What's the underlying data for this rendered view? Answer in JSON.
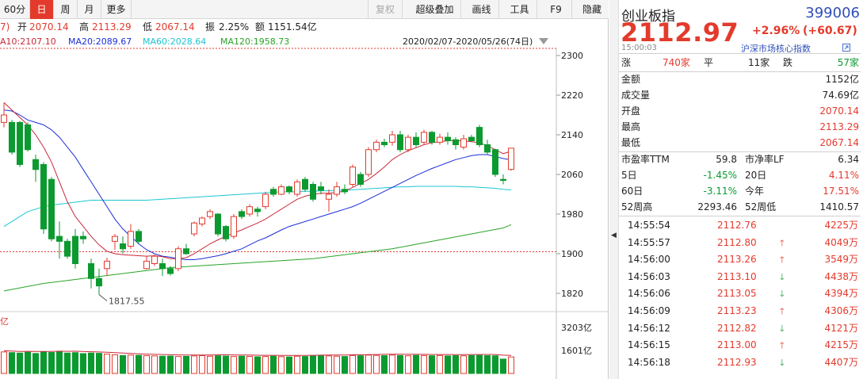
{
  "toolbar": {
    "tabs": [
      "60分",
      "日",
      "周",
      "月",
      "更多"
    ],
    "active_tab": "日",
    "right_buttons": [
      "复权",
      "超级叠加",
      "画线",
      "工具",
      "F9",
      "隐藏"
    ],
    "disabled_buttons": [
      "复权"
    ]
  },
  "info": {
    "prefix": "7)",
    "open_label": "开",
    "open": "2070.14",
    "high_label": "高",
    "high": "2113.29",
    "low_label": "低",
    "low": "2067.14",
    "amp_label": "振",
    "amp": "2.25%",
    "amount_label": "额",
    "amount": "1151.54亿"
  },
  "ma": {
    "ma10": "A10:2107.10",
    "ma20": "MA20:2089.67",
    "ma60": "MA60:2028.64",
    "ma120": "MA120:1958.73",
    "range": "2020/02/07-2020/05/26(74日)"
  },
  "colors": {
    "up": "#e33a2c",
    "down": "#0b9a2f",
    "ma10": "#c8283a",
    "ma20": "#1c2ed8",
    "ma60": "#1cc6d4",
    "ma120": "#28a428",
    "accent": "#e33a2c",
    "code_blue": "#2f4fb8"
  },
  "chart_data": {
    "type": "candlestick",
    "y_axis_labels": [
      "2300",
      "2220",
      "2140",
      "2060",
      "1980",
      "1900",
      "1820"
    ],
    "ylim": [
      1780,
      2310
    ],
    "low_annotation": "1817.55",
    "candles": [
      {
        "o": 2165,
        "c": 2180,
        "h": 2205,
        "l": 2155
      },
      {
        "o": 2165,
        "c": 2105,
        "h": 2170,
        "l": 2100
      },
      {
        "o": 2165,
        "c": 2080,
        "h": 2168,
        "l": 2075
      },
      {
        "o": 2160,
        "c": 2110,
        "h": 2165,
        "l": 2106
      },
      {
        "o": 2090,
        "c": 2070,
        "h": 2100,
        "l": 2045
      },
      {
        "o": 2080,
        "c": 1950,
        "h": 2085,
        "l": 1940
      },
      {
        "o": 2050,
        "c": 1930,
        "h": 2055,
        "l": 1925
      },
      {
        "o": 1935,
        "c": 1925,
        "h": 1965,
        "l": 1890
      },
      {
        "o": 1925,
        "c": 1895,
        "h": 1930,
        "l": 1890
      },
      {
        "o": 1935,
        "c": 1880,
        "h": 1950,
        "l": 1870
      },
      {
        "o": 1935,
        "c": 1930,
        "h": 1945,
        "l": 1920
      },
      {
        "o": 1880,
        "c": 1850,
        "h": 1890,
        "l": 1830
      },
      {
        "o": 1850,
        "c": 1835,
        "h": 1870,
        "l": 1817.55
      },
      {
        "o": 1870,
        "c": 1885,
        "h": 1892,
        "l": 1855
      },
      {
        "o": 1925,
        "c": 1935,
        "h": 1940,
        "l": 1908
      },
      {
        "o": 1920,
        "c": 1910,
        "h": 1935,
        "l": 1900
      },
      {
        "o": 1915,
        "c": 1945,
        "h": 1960,
        "l": 1910
      },
      {
        "o": 1945,
        "c": 1925,
        "h": 1950,
        "l": 1920
      },
      {
        "o": 1870,
        "c": 1885,
        "h": 1895,
        "l": 1868
      },
      {
        "o": 1880,
        "c": 1895,
        "h": 1898,
        "l": 1875
      },
      {
        "o": 1880,
        "c": 1870,
        "h": 1890,
        "l": 1855
      },
      {
        "o": 1870,
        "c": 1860,
        "h": 1875,
        "l": 1856
      },
      {
        "o": 1870,
        "c": 1910,
        "h": 1915,
        "l": 1865
      },
      {
        "o": 1910,
        "c": 1900,
        "h": 1920,
        "l": 1898
      },
      {
        "o": 1940,
        "c": 1962,
        "h": 1965,
        "l": 1935
      },
      {
        "o": 1960,
        "c": 1972,
        "h": 1975,
        "l": 1955
      },
      {
        "o": 1975,
        "c": 1985,
        "h": 1990,
        "l": 1970
      },
      {
        "o": 1980,
        "c": 1940,
        "h": 1982,
        "l": 1935
      },
      {
        "o": 1955,
        "c": 1930,
        "h": 1958,
        "l": 1925
      },
      {
        "o": 1935,
        "c": 1975,
        "h": 1980,
        "l": 1930
      },
      {
        "o": 1985,
        "c": 1975,
        "h": 1990,
        "l": 1970
      },
      {
        "o": 1980,
        "c": 1995,
        "h": 2000,
        "l": 1975
      },
      {
        "o": 1990,
        "c": 1985,
        "h": 1995,
        "l": 1975
      },
      {
        "o": 1995,
        "c": 2020,
        "h": 2025,
        "l": 1990
      },
      {
        "o": 2030,
        "c": 2020,
        "h": 2035,
        "l": 2015
      },
      {
        "o": 2020,
        "c": 2035,
        "h": 2040,
        "l": 2018
      },
      {
        "o": 2035,
        "c": 2025,
        "h": 2038,
        "l": 2020
      },
      {
        "o": 2020,
        "c": 2045,
        "h": 2050,
        "l": 2015
      },
      {
        "o": 2050,
        "c": 2030,
        "h": 2055,
        "l": 2025
      },
      {
        "o": 2040,
        "c": 2010,
        "h": 2045,
        "l": 2005
      },
      {
        "o": 2035,
        "c": 2028,
        "h": 2045,
        "l": 2020
      },
      {
        "o": 2010,
        "c": 2020,
        "h": 2030,
        "l": 1985
      },
      {
        "o": 2020,
        "c": 2035,
        "h": 2045,
        "l": 2015
      },
      {
        "o": 2030,
        "c": 2025,
        "h": 2040,
        "l": 2020
      },
      {
        "o": 2040,
        "c": 2075,
        "h": 2080,
        "l": 2035
      },
      {
        "o": 2060,
        "c": 2040,
        "h": 2065,
        "l": 2035
      },
      {
        "o": 2060,
        "c": 2110,
        "h": 2115,
        "l": 2055
      },
      {
        "o": 2110,
        "c": 2125,
        "h": 2130,
        "l": 2105
      },
      {
        "o": 2125,
        "c": 2120,
        "h": 2132,
        "l": 2115
      },
      {
        "o": 2125,
        "c": 2140,
        "h": 2148,
        "l": 2118
      },
      {
        "o": 2140,
        "c": 2110,
        "h": 2148,
        "l": 2105
      },
      {
        "o": 2110,
        "c": 2135,
        "h": 2140,
        "l": 2105
      },
      {
        "o": 2135,
        "c": 2120,
        "h": 2145,
        "l": 2115
      },
      {
        "o": 2125,
        "c": 2145,
        "h": 2150,
        "l": 2120
      },
      {
        "o": 2145,
        "c": 2125,
        "h": 2148,
        "l": 2120
      },
      {
        "o": 2125,
        "c": 2135,
        "h": 2142,
        "l": 2120
      },
      {
        "o": 2135,
        "c": 2128,
        "h": 2145,
        "l": 2120
      },
      {
        "o": 2130,
        "c": 2120,
        "h": 2135,
        "l": 2110
      },
      {
        "o": 2115,
        "c": 2132,
        "h": 2140,
        "l": 2110
      },
      {
        "o": 2135,
        "c": 2128,
        "h": 2140,
        "l": 2125
      },
      {
        "o": 2155,
        "c": 2120,
        "h": 2160,
        "l": 2115
      },
      {
        "o": 2120,
        "c": 2105,
        "h": 2130,
        "l": 2100
      },
      {
        "o": 2110,
        "c": 2060,
        "h": 2112,
        "l": 2055
      },
      {
        "o": 2050,
        "c": 2048,
        "h": 2060,
        "l": 2040
      },
      {
        "o": 2070.14,
        "c": 2112.97,
        "h": 2113.29,
        "l": 2067.14
      }
    ],
    "ma10": [
      2205,
      2190,
      2175,
      2160,
      2140,
      2115,
      2085,
      2045,
      2005,
      1975,
      1955,
      1935,
      1918,
      1905,
      1900,
      1898,
      1897,
      1896,
      1895,
      1896,
      1894,
      1890,
      1890,
      1892,
      1900,
      1910,
      1920,
      1928,
      1935,
      1942,
      1948,
      1955,
      1962,
      1970,
      1980,
      1990,
      2000,
      2010,
      2016,
      2020,
      2022,
      2022,
      2024,
      2026,
      2034,
      2042,
      2050,
      2062,
      2075,
      2090,
      2100,
      2108,
      2114,
      2120,
      2124,
      2126,
      2128,
      2128,
      2128,
      2126,
      2124,
      2118,
      2110,
      2102,
      2107.1
    ],
    "ma20": [
      2190,
      2188,
      2180,
      2170,
      2165,
      2160,
      2150,
      2135,
      2115,
      2095,
      2070,
      2045,
      2020,
      1995,
      1970,
      1950,
      1935,
      1920,
      1908,
      1900,
      1895,
      1893,
      1890,
      1888,
      1888,
      1890,
      1893,
      1896,
      1900,
      1905,
      1910,
      1918,
      1926,
      1932,
      1940,
      1948,
      1955,
      1960,
      1965,
      1970,
      1975,
      1980,
      1985,
      1990,
      1995,
      2002,
      2010,
      2018,
      2026,
      2034,
      2042,
      2050,
      2058,
      2065,
      2072,
      2078,
      2084,
      2090,
      2094,
      2098,
      2100,
      2100,
      2096,
      2092,
      2089.67
    ],
    "ma60": [
      1955,
      1965,
      1975,
      1985,
      1990,
      1995,
      1998,
      2000,
      2002,
      2004,
      2006,
      2008,
      2008,
      2008,
      2008,
      2008,
      2008,
      2008,
      2008,
      2009,
      2010,
      2011,
      2012,
      2013,
      2014,
      2015,
      2016,
      2017,
      2018,
      2019,
      2020,
      2021,
      2022,
      2023,
      2024,
      2025,
      2025,
      2025,
      2026,
      2026,
      2027,
      2027,
      2028,
      2028,
      2029,
      2030,
      2031,
      2032,
      2033,
      2034,
      2035,
      2035,
      2036,
      2036,
      2036,
      2036,
      2036,
      2036,
      2035,
      2035,
      2034,
      2033,
      2032,
      2030,
      2028.64
    ],
    "ma120": [
      1825,
      1828,
      1831,
      1834,
      1837,
      1840,
      1842,
      1844,
      1846,
      1848,
      1850,
      1852,
      1854,
      1856,
      1858,
      1860,
      1862,
      1864,
      1866,
      1868,
      1870,
      1872,
      1873,
      1874,
      1875,
      1876,
      1877,
      1878,
      1879,
      1880,
      1881,
      1882,
      1883,
      1884,
      1885,
      1886,
      1887,
      1888,
      1889,
      1890,
      1892,
      1894,
      1896,
      1898,
      1900,
      1902,
      1904,
      1906,
      1908,
      1910,
      1913,
      1916,
      1919,
      1922,
      1925,
      1928,
      1931,
      1934,
      1937,
      1940,
      1943,
      1946,
      1949,
      1952,
      1958.73
    ],
    "volume": {
      "axis_labels": [
        "3203亿",
        "1601亿"
      ],
      "unit": "亿",
      "ylim": [
        0,
        3203
      ],
      "values": [
        1500,
        1450,
        1420,
        1480,
        1390,
        1520,
        1460,
        1500,
        1420,
        1450,
        1380,
        1420,
        1400,
        1350,
        1300,
        1250,
        1280,
        1260,
        1240,
        1220,
        1200,
        1210,
        1180,
        1190,
        1220,
        1240,
        1200,
        1230,
        1210,
        1180,
        1200,
        1190,
        1160,
        1180,
        1200,
        1170,
        1150,
        1200,
        1180,
        1210,
        1230,
        1220,
        1200,
        1180,
        1250,
        1230,
        1280,
        1260,
        1240,
        1280,
        1250,
        1230,
        1260,
        1240,
        1230,
        1250,
        1220,
        1240,
        1230,
        1250,
        1260,
        1240,
        1230,
        1000,
        1151.54
      ]
    }
  },
  "quote": {
    "name": "创业板指",
    "code": "399006",
    "price": "2112.97",
    "change_pct": "+2.96%",
    "change_abs": "(+60.67)",
    "time": "15:00:03",
    "link": "沪深市场核心指数",
    "breadth": {
      "up_label": "涨",
      "up": "740家",
      "flat_label": "平",
      "flat": "11家",
      "down_label": "跌",
      "down": "57家"
    },
    "fields": [
      {
        "label": "金额",
        "value": "1152亿",
        "color": "black"
      },
      {
        "label": "成交量",
        "value": "74.69亿",
        "color": "black"
      },
      {
        "label": "开盘",
        "value": "2070.14",
        "color": "red"
      },
      {
        "label": "最高",
        "value": "2113.29",
        "color": "red"
      },
      {
        "label": "最低",
        "value": "2067.14",
        "color": "red"
      }
    ],
    "stats": [
      {
        "l1": "市盈率TTM",
        "v1": "59.8",
        "c1": "black",
        "l2": "市净率LF",
        "v2": "6.34",
        "c2": "black"
      },
      {
        "l1": "5日",
        "v1": "-1.45%",
        "c1": "green",
        "l2": "20日",
        "v2": "4.11%",
        "c2": "red"
      },
      {
        "l1": "60日",
        "v1": "-3.11%",
        "c1": "green",
        "l2": "今年",
        "v2": "17.51%",
        "c2": "red"
      },
      {
        "l1": "52周高",
        "v1": "2293.46",
        "c1": "black",
        "l2": "52周低",
        "v2": "1410.57",
        "c2": "black"
      }
    ],
    "ticks": [
      {
        "time": "14:55:54",
        "price": "2112.76",
        "dir": "",
        "vol": "4225万"
      },
      {
        "time": "14:55:57",
        "price": "2112.80",
        "dir": "up",
        "vol": "4049万"
      },
      {
        "time": "14:56:00",
        "price": "2113.26",
        "dir": "up",
        "vol": "3549万"
      },
      {
        "time": "14:56:03",
        "price": "2113.10",
        "dir": "down",
        "vol": "4438万"
      },
      {
        "time": "14:56:06",
        "price": "2113.05",
        "dir": "down",
        "vol": "4394万"
      },
      {
        "time": "14:56:09",
        "price": "2113.23",
        "dir": "up",
        "vol": "4306万"
      },
      {
        "time": "14:56:12",
        "price": "2112.82",
        "dir": "down",
        "vol": "4121万"
      },
      {
        "time": "14:56:15",
        "price": "2113.00",
        "dir": "up",
        "vol": "4215万"
      },
      {
        "time": "14:56:18",
        "price": "2112.93",
        "dir": "down",
        "vol": "4407万"
      }
    ]
  }
}
